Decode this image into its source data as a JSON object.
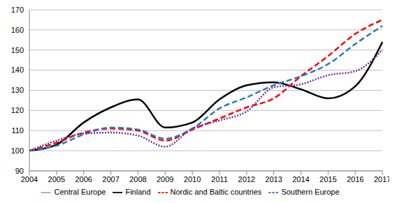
{
  "chart_data": {
    "type": "line",
    "categories": [
      "2004",
      "2005",
      "2006",
      "2007",
      "2008",
      "2009",
      "2010",
      "2011",
      "2012",
      "2013",
      "2014",
      "2015",
      "2016",
      "2017"
    ],
    "series": [
      {
        "name": "Finland",
        "color": "#000000",
        "line_style": "solid",
        "values": [
          100,
          103,
          114,
          121.5,
          125.5,
          111.5,
          114,
          125.5,
          132.5,
          134,
          130.5,
          126,
          132,
          154
        ]
      },
      {
        "name": "Nordic and Baltic countries",
        "color": "#ff0000",
        "line_style": "dashed",
        "values": [
          100,
          104,
          109,
          111,
          110,
          105,
          110.5,
          116,
          121.5,
          126,
          137,
          147,
          158,
          165
        ]
      },
      {
        "name": "Southern Europe",
        "color": "#2e7bb4",
        "line_style": "dashed",
        "values": [
          100,
          102.5,
          108,
          111.5,
          110.5,
          106,
          111,
          121,
          126.5,
          132.5,
          137,
          143,
          153,
          162
        ]
      },
      {
        "name": "Central Europe",
        "color": "#7030a0",
        "line_style": "dotted",
        "values": [
          100,
          105,
          108.5,
          109,
          107.5,
          102,
          111,
          115,
          119.5,
          131.5,
          133,
          137.5,
          139.5,
          150
        ]
      }
    ],
    "ylim": [
      90,
      170
    ],
    "yticks": [
      90,
      100,
      110,
      120,
      130,
      140,
      150,
      160,
      170
    ],
    "grid": true,
    "legend": "bottom"
  }
}
